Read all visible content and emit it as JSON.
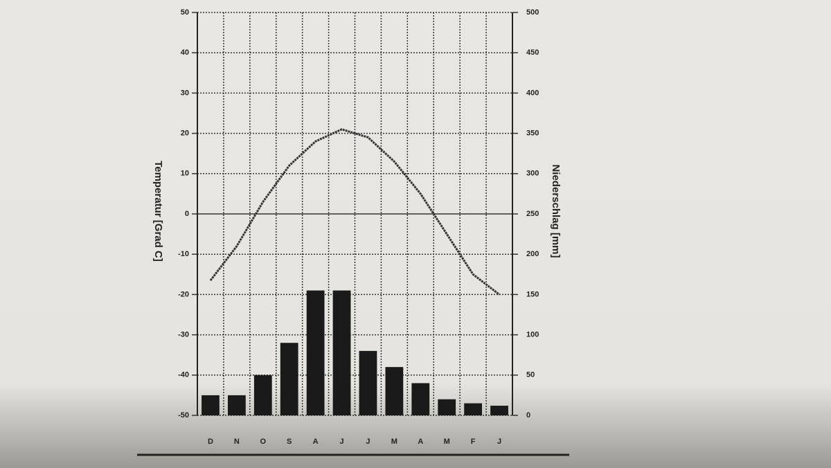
{
  "chart_data": {
    "type": "bar",
    "y_label": "Temperatur [Grad C]",
    "y2_label": "Niederschlag [mm]",
    "categories": [
      "D",
      "N",
      "O",
      "S",
      "A",
      "J",
      "J",
      "M",
      "A",
      "M",
      "F",
      "J"
    ],
    "series": [
      {
        "type": "line",
        "color": "#333333",
        "values": [
          -16.5,
          -8,
          3,
          12,
          18,
          21,
          19,
          13,
          5,
          -5,
          -15,
          -20
        ]
      },
      {
        "type": "bar",
        "axis": "y2",
        "color": "#1a1a1a",
        "values": [
          25,
          25,
          50,
          90,
          155,
          155,
          80,
          60,
          40,
          20,
          15,
          12
        ]
      }
    ],
    "ylim": [
      -50,
      50
    ],
    "yticks": [
      -50,
      -40,
      -30,
      -20,
      -10,
      0,
      10,
      20,
      30,
      40,
      50
    ],
    "y2lim": [
      0,
      500
    ],
    "y2ticks": [
      0,
      50,
      100,
      150,
      200,
      250,
      300,
      350,
      400,
      450,
      500
    ],
    "grid": true
  }
}
